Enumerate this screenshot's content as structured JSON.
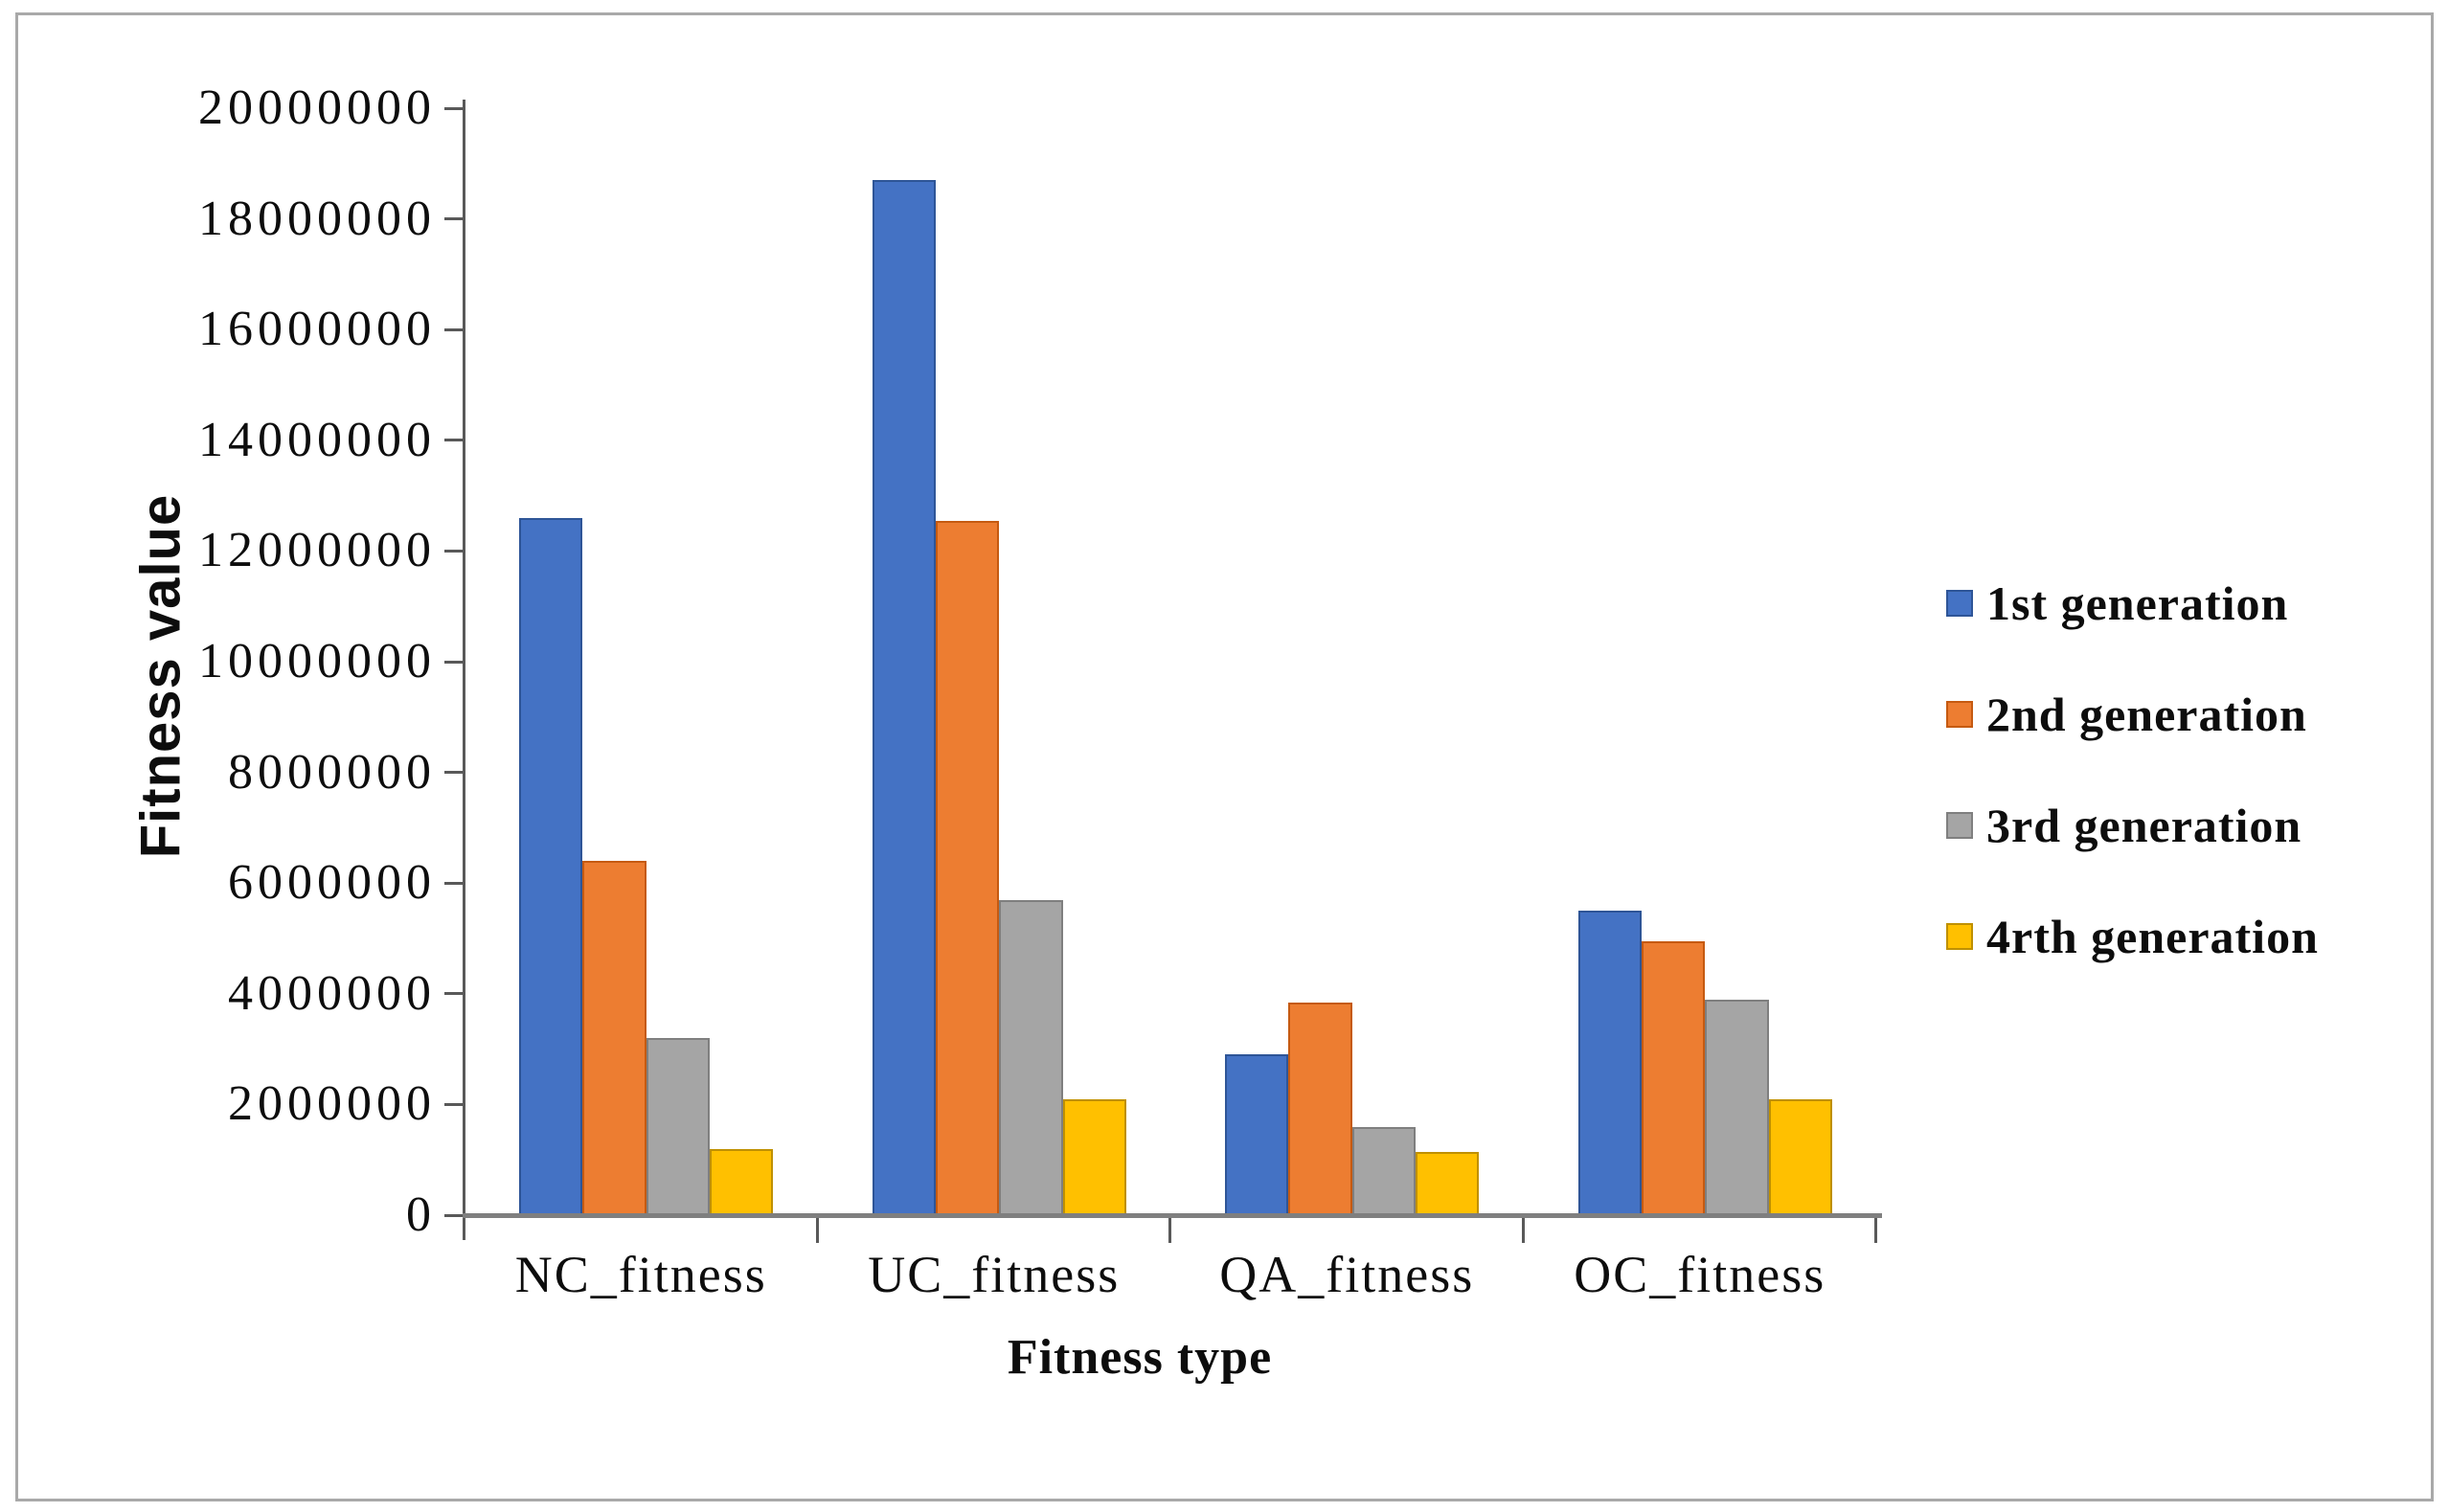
{
  "chart_data": {
    "type": "bar",
    "title": "",
    "xlabel": "Fitness type",
    "ylabel": "Fitness value",
    "categories": [
      "NC_fitness",
      "UC_fitness",
      "QA_fitness",
      "OC_fitness"
    ],
    "series": [
      {
        "name": "1st generation",
        "color": "#4472C4",
        "border": "#2E5597",
        "values": [
          12600000,
          18700000,
          2900000,
          5500000
        ]
      },
      {
        "name": "2nd generation",
        "color": "#ED7D31",
        "border": "#C55A11",
        "values": [
          6400000,
          12550000,
          3850000,
          4950000
        ]
      },
      {
        "name": "3rd generation",
        "color": "#A5A5A5",
        "border": "#7F7F7F",
        "values": [
          3200000,
          5700000,
          1600000,
          3900000
        ]
      },
      {
        "name": "4rth generation",
        "color": "#FFC000",
        "border": "#BF9000",
        "values": [
          1200000,
          2100000,
          1150000,
          2100000
        ]
      }
    ],
    "ylim": [
      0,
      20000000
    ],
    "ytick_step": 2000000,
    "yticks": [
      "20000000",
      "18000000",
      "16000000",
      "14000000",
      "12000000",
      "10000000",
      "8000000",
      "6000000",
      "4000000",
      "2000000",
      "0"
    ],
    "legend_position": "right",
    "grid": false
  }
}
